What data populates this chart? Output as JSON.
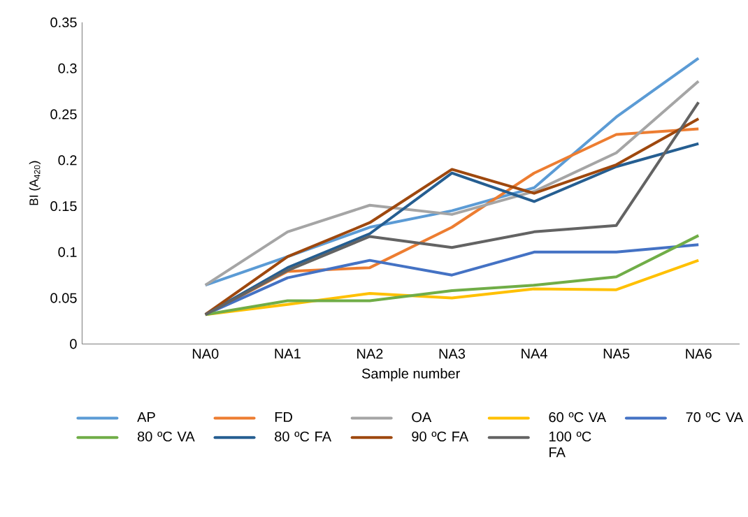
{
  "chart_data": {
    "type": "line",
    "xlabel": "Sample number",
    "ylabel": "BI (A$_{420}$)",
    "categories": [
      null,
      "NA0",
      "NA1",
      "NA2",
      "NA3",
      "NA4",
      "NA5",
      "NA6"
    ],
    "ylim": [
      0,
      0.35
    ],
    "yticks": [
      0,
      0.05,
      0.1,
      0.15,
      0.2,
      0.25,
      0.3,
      0.35
    ],
    "grid": false,
    "legend": "bottom",
    "marker": "none",
    "line_style": "solid",
    "series": [
      {
        "name": "AP",
        "color": "#5b9bd5",
        "values": [
          null,
          0.064,
          0.095,
          0.127,
          0.145,
          0.17,
          0.247,
          0.311
        ]
      },
      {
        "name": "FD",
        "color": "#ed7d31",
        "values": [
          null,
          0.032,
          0.079,
          0.083,
          0.127,
          0.186,
          0.228,
          0.234
        ]
      },
      {
        "name": "OA",
        "color": "#a5a5a5",
        "values": [
          null,
          0.064,
          0.122,
          0.151,
          0.141,
          0.166,
          0.208,
          0.286
        ]
      },
      {
        "name": "60 ºC VA",
        "color": "#ffc000",
        "values": [
          null,
          0.032,
          0.043,
          0.055,
          0.05,
          0.06,
          0.059,
          0.091
        ]
      },
      {
        "name": "70 ºC VA",
        "color": "#4472c4",
        "values": [
          null,
          0.032,
          0.072,
          0.091,
          0.075,
          0.1,
          0.1,
          0.108
        ]
      },
      {
        "name": "80 ºC VA",
        "color": "#70ad47",
        "values": [
          null,
          0.032,
          0.047,
          0.047,
          0.058,
          0.064,
          0.073,
          0.118
        ]
      },
      {
        "name": "80 ºC FA",
        "color": "#255e91",
        "values": [
          null,
          0.032,
          0.083,
          0.12,
          0.186,
          0.155,
          0.193,
          0.218
        ]
      },
      {
        "name": "90 ºC FA",
        "color": "#9e480e",
        "values": [
          null,
          0.032,
          0.095,
          0.132,
          0.19,
          0.164,
          0.195,
          0.245
        ]
      },
      {
        "name": "100 ºC FA",
        "color": "#636363",
        "values": [
          null,
          0.032,
          0.08,
          0.117,
          0.105,
          0.122,
          0.129,
          0.263
        ]
      }
    ]
  }
}
